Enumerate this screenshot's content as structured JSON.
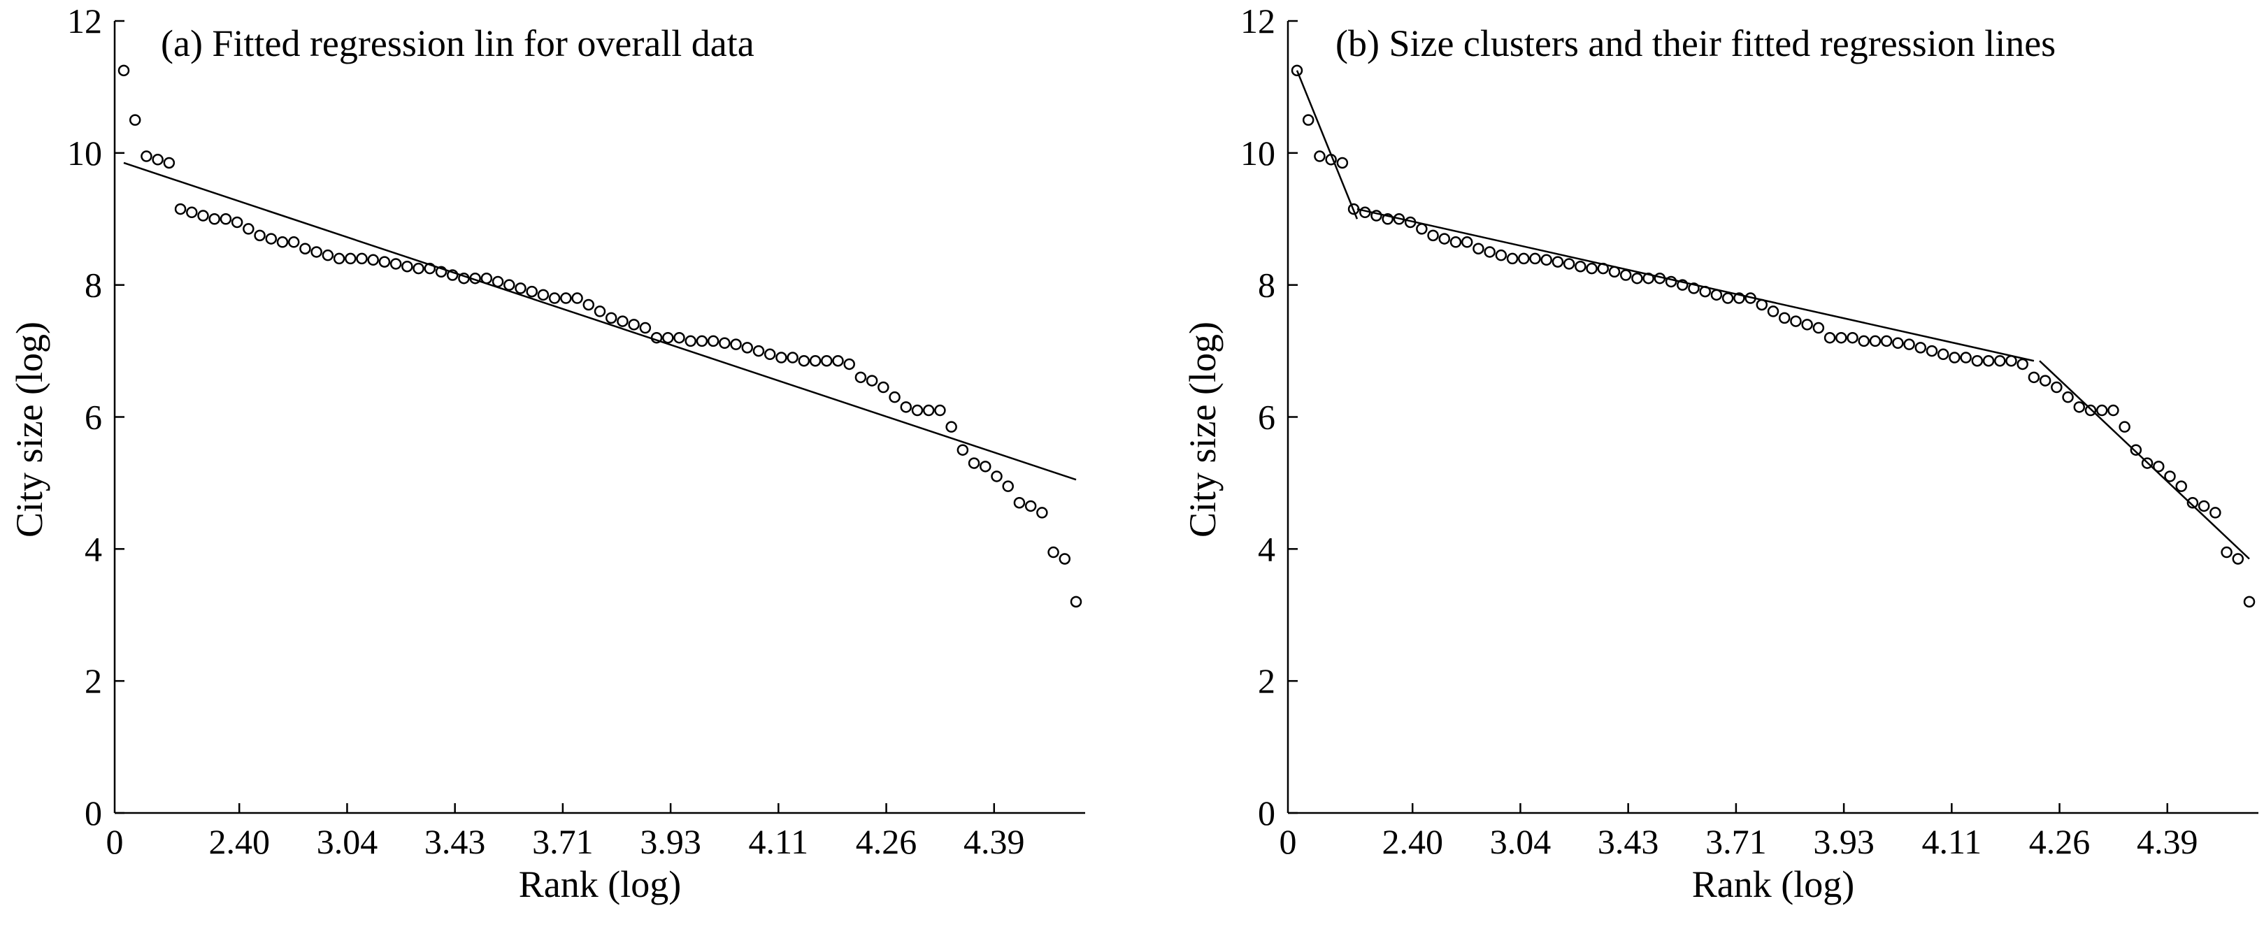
{
  "chart_data": [
    {
      "type": "scatter",
      "title": "(a) Fitted regression lin for overall data",
      "xlabel": "Rank (log)",
      "ylabel": "City size (log)",
      "x_tick_labels": [
        "0",
        "2.40",
        "3.04",
        "3.43",
        "3.71",
        "3.93",
        "4.11",
        "4.26",
        "4.39"
      ],
      "y_ticks": [
        0,
        2,
        4,
        6,
        8,
        10,
        12
      ],
      "ylim": [
        0,
        12
      ],
      "grid": false,
      "points": [
        11.25,
        10.5,
        9.95,
        9.9,
        9.85,
        9.15,
        9.1,
        9.05,
        9.0,
        9.0,
        8.95,
        8.85,
        8.75,
        8.7,
        8.65,
        8.65,
        8.55,
        8.5,
        8.45,
        8.4,
        8.4,
        8.4,
        8.38,
        8.35,
        8.32,
        8.28,
        8.25,
        8.25,
        8.2,
        8.15,
        8.1,
        8.1,
        8.1,
        8.05,
        8.0,
        7.95,
        7.9,
        7.85,
        7.8,
        7.8,
        7.8,
        7.7,
        7.6,
        7.5,
        7.45,
        7.4,
        7.35,
        7.2,
        7.2,
        7.2,
        7.15,
        7.15,
        7.15,
        7.12,
        7.1,
        7.05,
        7.0,
        6.95,
        6.9,
        6.9,
        6.85,
        6.85,
        6.85,
        6.85,
        6.8,
        6.6,
        6.55,
        6.45,
        6.3,
        6.15,
        6.1,
        6.1,
        6.1,
        5.85,
        5.5,
        5.3,
        5.25,
        5.1,
        4.95,
        4.7,
        4.65,
        4.55,
        3.95,
        3.85,
        3.2
      ],
      "fit_lines": [
        {
          "x": [
            0,
            84
          ],
          "y": [
            9.85,
            5.05
          ]
        }
      ]
    },
    {
      "type": "scatter",
      "title": "(b) Size clusters and their fitted regression lines",
      "xlabel": "Rank (log)",
      "ylabel": "City size (log)",
      "x_tick_labels": [
        "0",
        "2.40",
        "3.04",
        "3.43",
        "3.71",
        "3.93",
        "4.11",
        "4.26",
        "4.39"
      ],
      "y_ticks": [
        0,
        2,
        4,
        6,
        8,
        10,
        12
      ],
      "ylim": [
        0,
        12
      ],
      "grid": false,
      "points": [
        11.25,
        10.5,
        9.95,
        9.9,
        9.85,
        9.15,
        9.1,
        9.05,
        9.0,
        9.0,
        8.95,
        8.85,
        8.75,
        8.7,
        8.65,
        8.65,
        8.55,
        8.5,
        8.45,
        8.4,
        8.4,
        8.4,
        8.38,
        8.35,
        8.32,
        8.28,
        8.25,
        8.25,
        8.2,
        8.15,
        8.1,
        8.1,
        8.1,
        8.05,
        8.0,
        7.95,
        7.9,
        7.85,
        7.8,
        7.8,
        7.8,
        7.7,
        7.6,
        7.5,
        7.45,
        7.4,
        7.35,
        7.2,
        7.2,
        7.2,
        7.15,
        7.15,
        7.15,
        7.12,
        7.1,
        7.05,
        7.0,
        6.95,
        6.9,
        6.9,
        6.85,
        6.85,
        6.85,
        6.85,
        6.8,
        6.6,
        6.55,
        6.45,
        6.3,
        6.15,
        6.1,
        6.1,
        6.1,
        5.85,
        5.5,
        5.3,
        5.25,
        5.1,
        4.95,
        4.7,
        4.65,
        4.55,
        3.95,
        3.85,
        3.2
      ],
      "fit_lines": [
        {
          "x": [
            0,
            5.3
          ],
          "y": [
            11.25,
            9.0
          ]
        },
        {
          "x": [
            5.3,
            65.0
          ],
          "y": [
            9.15,
            6.85
          ]
        },
        {
          "x": [
            65.5,
            84.0
          ],
          "y": [
            6.85,
            3.85
          ]
        }
      ]
    }
  ]
}
